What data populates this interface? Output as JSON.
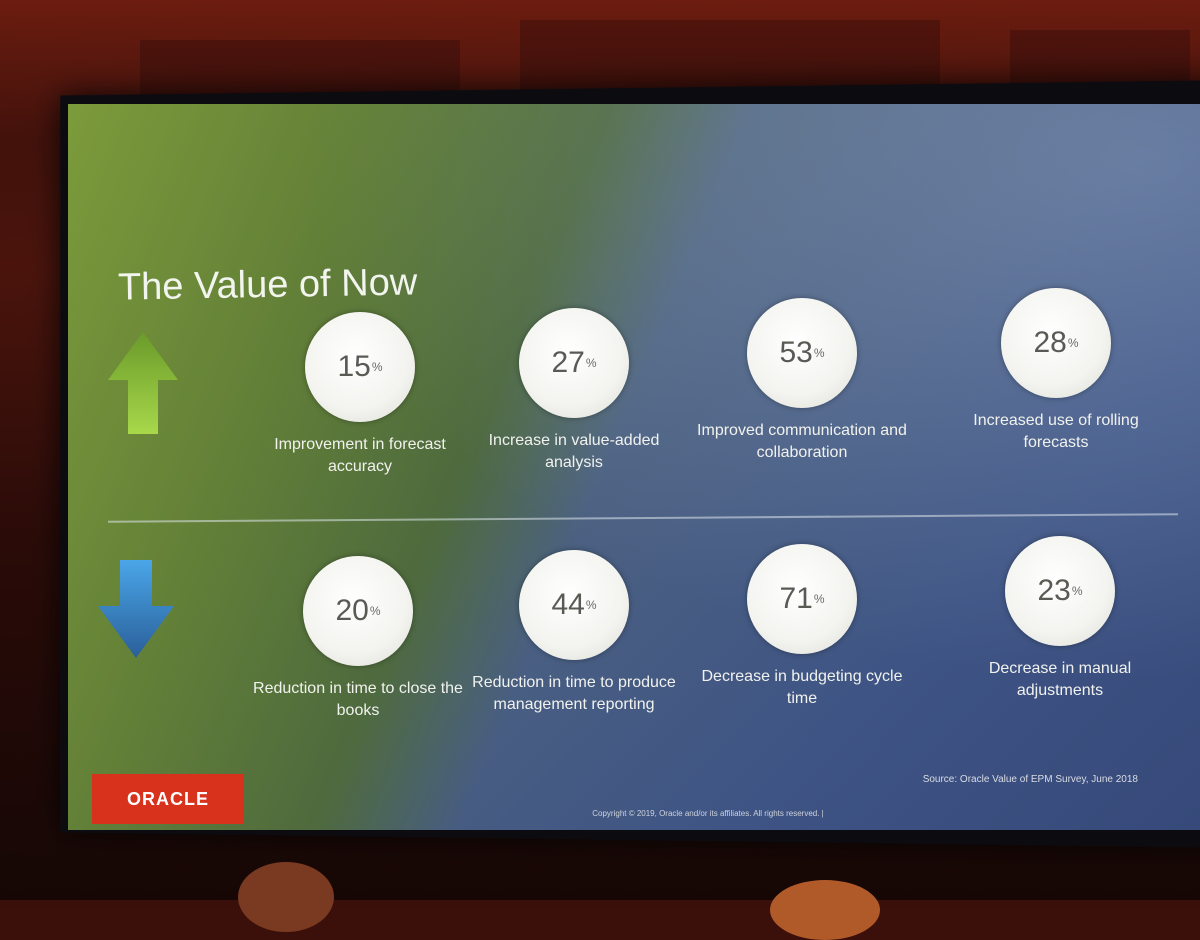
{
  "slide": {
    "title": "The Value of Now",
    "up_arrow_color": "#8fbf3a",
    "down_arrow_color": "#3b8ed0",
    "stats_up": [
      {
        "value": "15",
        "unit": "%",
        "label": "Improvement in forecast accuracy"
      },
      {
        "value": "27",
        "unit": "%",
        "label": "Increase in value-added analysis"
      },
      {
        "value": "53",
        "unit": "%",
        "label": "Improved communication and collaboration"
      },
      {
        "value": "28",
        "unit": "%",
        "label": "Increased use of rolling forecasts"
      }
    ],
    "stats_down": [
      {
        "value": "20",
        "unit": "%",
        "label": "Reduction in time to close the books"
      },
      {
        "value": "44",
        "unit": "%",
        "label": "Reduction in time to produce management reporting"
      },
      {
        "value": "71",
        "unit": "%",
        "label": "Decrease in budgeting cycle time"
      },
      {
        "value": "23",
        "unit": "%",
        "label": "Decrease in manual adjustments"
      }
    ],
    "logo": "ORACLE",
    "logo_color": "#d8311c",
    "source": "Source: Oracle Value of EPM Survey, June 2018",
    "copyright": "Copyright © 2019, Oracle and/or its affiliates. All rights reserved.  |"
  }
}
